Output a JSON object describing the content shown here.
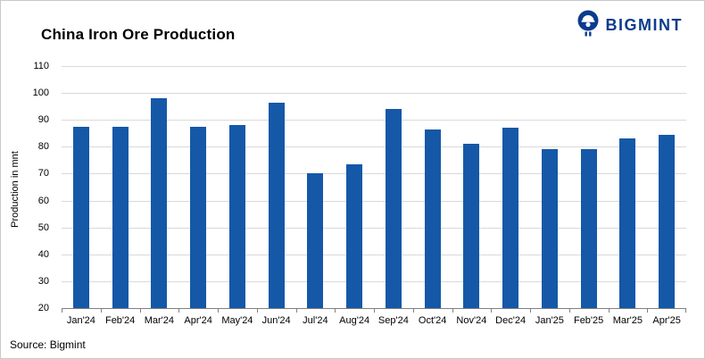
{
  "header": {
    "title": "China Iron Ore Production",
    "brand": "BIGMINT",
    "brand_color": "#0b3c8c"
  },
  "chart_data": {
    "type": "bar",
    "title": "China Iron Ore Production",
    "categories": [
      "Jan'24",
      "Feb'24",
      "Mar'24",
      "Apr'24",
      "May'24",
      "Jun'24",
      "Jul'24",
      "Aug'24",
      "Sep'24",
      "Oct'24",
      "Nov'24",
      "Dec'24",
      "Jan'25",
      "Feb'25",
      "Mar'25",
      "Apr'25"
    ],
    "values": [
      87.5,
      87.5,
      98,
      87.5,
      88,
      96.5,
      70,
      73.5,
      94,
      86.5,
      81,
      87,
      79,
      79,
      83,
      84.5
    ],
    "xlabel": "",
    "ylabel": "Production in mnt",
    "ylim": [
      20,
      110
    ],
    "ytick_step": 10,
    "bar_color": "#1558a8",
    "grid": true,
    "legend_position": "none"
  },
  "footer": {
    "source": "Source: Bigmint"
  }
}
